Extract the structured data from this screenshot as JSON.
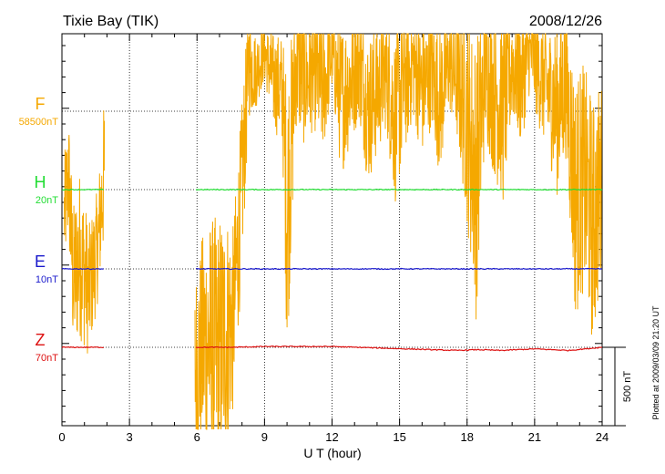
{
  "header": {
    "station": "Tixie Bay (TIK)",
    "date": "2008/12/26"
  },
  "footer": {
    "plotted_note": "Plotted at 2009/03/09 21:20 UT",
    "scale_bar_label": "500 nT"
  },
  "chart_data": {
    "type": "line",
    "xlabel": "U T (hour)",
    "xlim": [
      0,
      24
    ],
    "x_ticks": [
      "0",
      "3",
      "6",
      "9",
      "12",
      "15",
      "18",
      "21",
      "24"
    ],
    "grid": true,
    "gaps_hours": [
      [
        1.9,
        5.9
      ]
    ],
    "series": [
      {
        "name": "F",
        "baseline": "58500nT",
        "color": "#f5a800",
        "note": "fluctuating, frequently clipped at plot edges",
        "x": [
          0.1,
          0.3,
          0.5,
          0.8,
          1.2,
          1.6,
          1.9,
          5.9,
          6.4,
          6.9,
          7.3,
          7.6,
          8.0,
          8.3,
          8.6,
          9.0,
          9.4,
          9.8,
          10.0,
          10.4,
          10.8,
          11.2,
          11.6,
          12.0,
          12.4,
          12.8,
          13.2,
          13.6,
          14.0,
          14.4,
          14.8,
          15.2,
          15.6,
          16.0,
          16.4,
          16.8,
          17.2,
          17.6,
          18.0,
          18.4,
          18.8,
          19.2,
          19.6,
          20.0,
          20.4,
          20.8,
          21.2,
          21.6,
          22.0,
          22.4,
          22.8,
          23.2,
          23.6,
          23.9
        ],
        "y": [
          2200,
          2600,
          1500,
          1800,
          1400,
          1900,
          2700,
          600,
          900,
          700,
          1000,
          1100,
          2500,
          3800,
          3700,
          3900,
          3600,
          3500,
          2200,
          3800,
          3600,
          3700,
          3500,
          3900,
          3400,
          3600,
          3800,
          3300,
          3500,
          3700,
          3200,
          3600,
          3800,
          3500,
          3700,
          3400,
          3800,
          3600,
          3200,
          2600,
          3700,
          3500,
          3300,
          3800,
          3600,
          3900,
          3700,
          3500,
          3300,
          3600,
          2400,
          2600,
          2100,
          2500
        ],
        "spread": [
          600,
          700,
          800,
          900,
          700,
          600,
          800,
          1000,
          1300,
          1500,
          1300,
          1000,
          900,
          600,
          400,
          300,
          500,
          600,
          1500,
          700,
          700,
          600,
          700,
          400,
          800,
          700,
          600,
          800,
          700,
          600,
          900,
          800,
          600,
          700,
          600,
          800,
          500,
          700,
          1100,
          1500,
          700,
          900,
          1000,
          600,
          700,
          400,
          600,
          700,
          900,
          800,
          1300,
          1200,
          1300,
          1100
        ]
      },
      {
        "name": "H",
        "baseline": "20nT",
        "color": "#22dd33",
        "x": [
          0,
          1.9,
          5.9,
          9,
          12,
          15,
          18,
          21,
          24
        ],
        "y": [
          0,
          0,
          0,
          0,
          0,
          0,
          0,
          0,
          0
        ]
      },
      {
        "name": "E",
        "baseline": "10nT",
        "color": "#1a1acc",
        "x": [
          0,
          1.9,
          5.9,
          9,
          12,
          15,
          18,
          21,
          24
        ],
        "y": [
          0,
          0,
          0,
          0,
          0,
          0,
          0,
          0,
          0
        ]
      },
      {
        "name": "Z",
        "baseline": "70nT",
        "color": "#dd1111",
        "x": [
          0,
          1.9,
          5.9,
          7.6,
          9,
          12,
          17.5,
          18.5,
          19.5,
          21,
          22.5,
          24
        ],
        "y": [
          0,
          0,
          0,
          0,
          5,
          5,
          -20,
          -15,
          -20,
          -10,
          -20,
          0
        ]
      }
    ]
  }
}
